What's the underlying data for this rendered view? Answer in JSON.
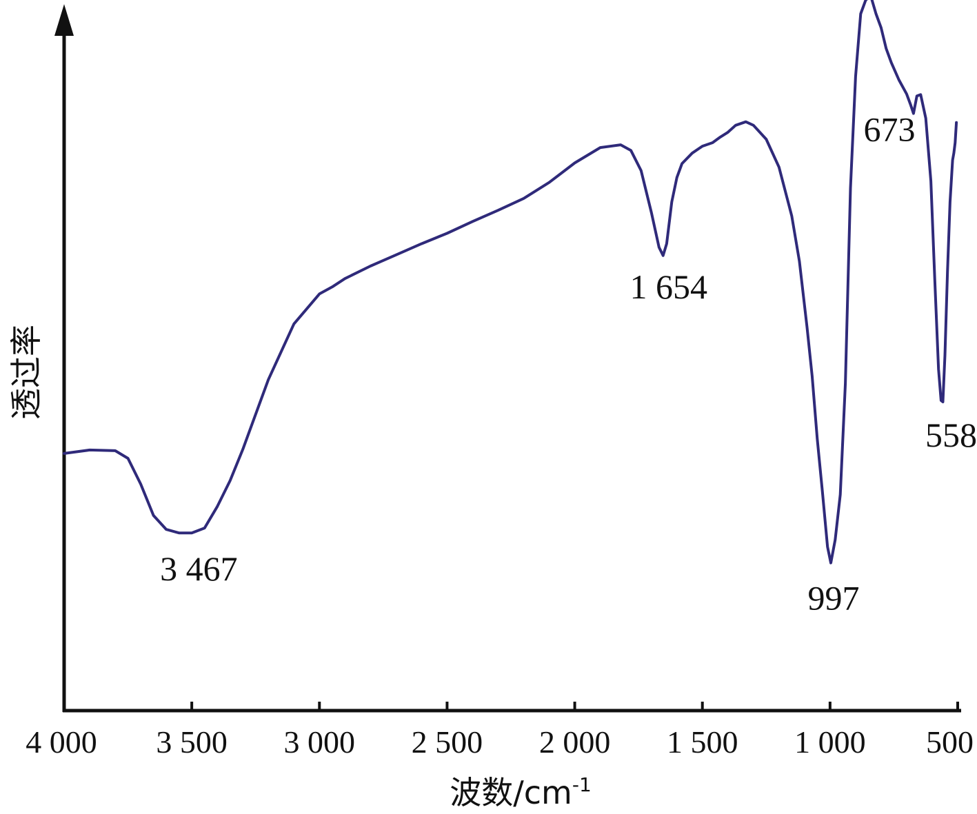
{
  "chart_data": {
    "type": "line",
    "xlabel_main": "波数/cm",
    "xlabel_sup": "-1",
    "ylabel": "透过率",
    "x_reversed": true,
    "xlim": [
      4000,
      500
    ],
    "ylim": [
      0,
      100
    ],
    "yticks_shown": false,
    "grid": false,
    "legend": "none",
    "xticks": [
      {
        "value": 4000,
        "label": "4 000"
      },
      {
        "value": 3500,
        "label": "3 500"
      },
      {
        "value": 3000,
        "label": "3 000"
      },
      {
        "value": 2500,
        "label": "2 500"
      },
      {
        "value": 2000,
        "label": "2 000"
      },
      {
        "value": 1500,
        "label": "1 500"
      },
      {
        "value": 1000,
        "label": "1 000"
      },
      {
        "value": 500,
        "label": "500"
      }
    ],
    "series": [
      {
        "color": "#2f2a7a",
        "points": [
          [
            4000,
            36.9
          ],
          [
            3900,
            37.4
          ],
          [
            3800,
            37.3
          ],
          [
            3750,
            36.2
          ],
          [
            3700,
            32.5
          ],
          [
            3650,
            28.0
          ],
          [
            3600,
            26.0
          ],
          [
            3550,
            25.5
          ],
          [
            3500,
            25.5
          ],
          [
            3450,
            26.2
          ],
          [
            3400,
            29.3
          ],
          [
            3350,
            33.0
          ],
          [
            3300,
            37.5
          ],
          [
            3250,
            42.5
          ],
          [
            3200,
            47.5
          ],
          [
            3100,
            55.5
          ],
          [
            3000,
            59.8
          ],
          [
            2950,
            60.8
          ],
          [
            2900,
            62.0
          ],
          [
            2800,
            63.8
          ],
          [
            2700,
            65.4
          ],
          [
            2600,
            67.0
          ],
          [
            2500,
            68.5
          ],
          [
            2400,
            70.2
          ],
          [
            2300,
            71.8
          ],
          [
            2200,
            73.5
          ],
          [
            2100,
            75.8
          ],
          [
            2000,
            78.6
          ],
          [
            1900,
            80.8
          ],
          [
            1820,
            81.2
          ],
          [
            1780,
            80.4
          ],
          [
            1740,
            77.5
          ],
          [
            1700,
            71.5
          ],
          [
            1670,
            66.5
          ],
          [
            1654,
            65.3
          ],
          [
            1640,
            67.0
          ],
          [
            1620,
            73.0
          ],
          [
            1600,
            76.5
          ],
          [
            1580,
            78.5
          ],
          [
            1540,
            80.0
          ],
          [
            1500,
            81.0
          ],
          [
            1460,
            81.5
          ],
          [
            1430,
            82.3
          ],
          [
            1400,
            83.0
          ],
          [
            1370,
            84.0
          ],
          [
            1330,
            84.5
          ],
          [
            1300,
            84.0
          ],
          [
            1250,
            82.0
          ],
          [
            1200,
            78.0
          ],
          [
            1150,
            71.0
          ],
          [
            1120,
            64.5
          ],
          [
            1090,
            55.0
          ],
          [
            1070,
            48.0
          ],
          [
            1050,
            39.0
          ],
          [
            1030,
            31.5
          ],
          [
            1010,
            23.5
          ],
          [
            997,
            21.2
          ],
          [
            980,
            24.5
          ],
          [
            960,
            31.0
          ],
          [
            940,
            47.0
          ],
          [
            920,
            75.0
          ],
          [
            900,
            91.0
          ],
          [
            880,
            100.0
          ],
          [
            860,
            102.0
          ],
          [
            840,
            102.5
          ],
          [
            820,
            100.0
          ],
          [
            800,
            98.0
          ],
          [
            780,
            95.0
          ],
          [
            760,
            93.0
          ],
          [
            730,
            90.5
          ],
          [
            700,
            88.5
          ],
          [
            685,
            87.0
          ],
          [
            673,
            85.7
          ],
          [
            660,
            88.2
          ],
          [
            645,
            88.4
          ],
          [
            625,
            85.0
          ],
          [
            605,
            76.0
          ],
          [
            590,
            62.0
          ],
          [
            575,
            49.0
          ],
          [
            565,
            44.5
          ],
          [
            558,
            44.3
          ],
          [
            550,
            51.0
          ],
          [
            540,
            63.0
          ],
          [
            530,
            73.0
          ],
          [
            520,
            79.0
          ],
          [
            515,
            80.0
          ],
          [
            510,
            81.5
          ],
          [
            505,
            84.4
          ]
        ]
      }
    ],
    "annotations": [
      {
        "text": "3 467",
        "x": 3467,
        "y": 25.6
      },
      {
        "text": "1 654",
        "x": 1654,
        "y": 65.3
      },
      {
        "text": "997",
        "x": 997,
        "y": 21.2
      },
      {
        "text": "673",
        "x": 673,
        "y": 85.7
      },
      {
        "text": "558",
        "x": 558,
        "y": 44.3
      }
    ]
  }
}
